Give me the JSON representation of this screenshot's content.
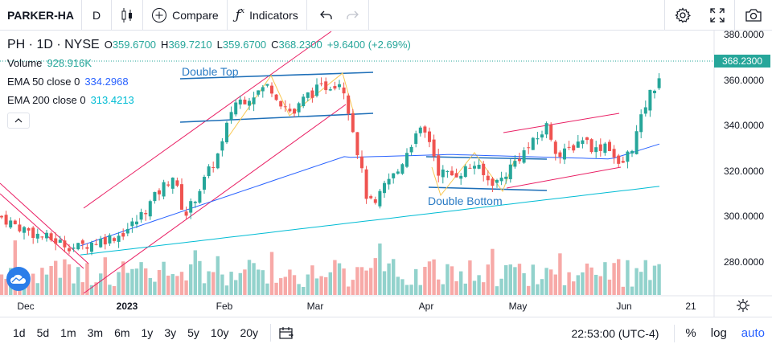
{
  "toolbar": {
    "symbol": "PARKER-HA",
    "interval": "D",
    "compare_label": "Compare",
    "indicators_label": "Indicators"
  },
  "legend": {
    "title": "PH · 1D · NYSE",
    "open_label": "O",
    "open": "359.6700",
    "high_label": "H",
    "high": "369.7210",
    "low_label": "L",
    "low": "359.6700",
    "close_label": "C",
    "close": "368.2300",
    "change": "+9.6400 (+2.69%)",
    "volume_label": "Volume",
    "volume": "928.916K",
    "ema50_label": "EMA 50 close 0",
    "ema50": "334.2968",
    "ema200_label": "EMA 200 close 0",
    "ema200": "313.4213"
  },
  "price_axis": {
    "labels": [
      "380.0000",
      "360.0000",
      "340.0000",
      "320.0000",
      "300.0000",
      "280.0000"
    ],
    "last_price": "368.2300"
  },
  "time_axis": {
    "labels": [
      "Dec",
      "2023",
      "Feb",
      "Mar",
      "Apr",
      "May",
      "Jun",
      "21"
    ]
  },
  "annotations": {
    "double_top": "Double Top",
    "double_bottom": "Double Bottom"
  },
  "bottom": {
    "ranges": [
      "1d",
      "5d",
      "1m",
      "3m",
      "6m",
      "1y",
      "3y",
      "5y",
      "10y",
      "20y"
    ],
    "time": "22:53:00 (UTC-4)",
    "percent": "%",
    "log": "log",
    "auto": "auto"
  },
  "colors": {
    "up": "#26a69a",
    "down": "#ef5350",
    "ema50": "#2962ff",
    "ema200": "#00bcd4",
    "channel": "#e91e63",
    "trendline": "#1e6fb8"
  },
  "chart_data": {
    "type": "candlestick",
    "ylim": [
      262,
      382
    ],
    "ema50_close": 334.2968,
    "ema200_close": 313.4213,
    "last": {
      "open": 359.67,
      "high": 369.721,
      "low": 359.67,
      "close": 368.23,
      "volume": "928.916K"
    }
  }
}
